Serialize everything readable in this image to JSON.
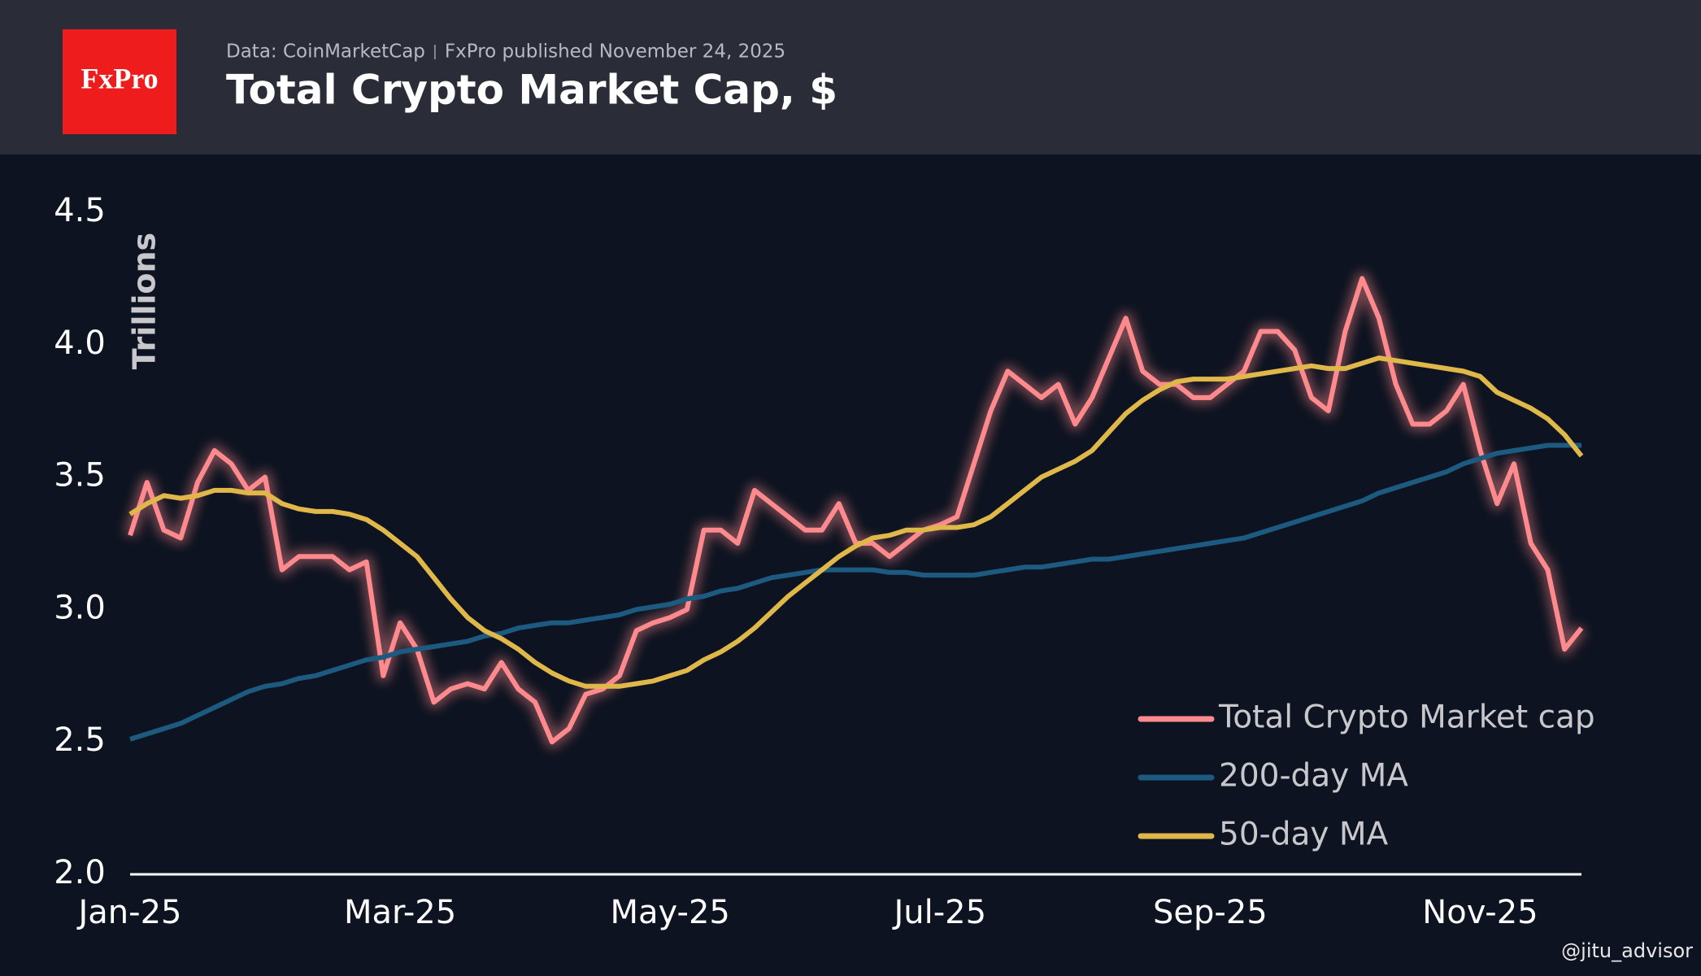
{
  "header": {
    "logo": "FxPro",
    "source": "Data: CoinMarketCap",
    "published": "FxPro published November 24, 2025"
  },
  "watermark": "@jitu_advisor",
  "chart_data": {
    "type": "line",
    "title": "Total Crypto Market Cap, $",
    "y_label": "Trillions",
    "categories": [
      "Jan-25",
      null,
      null,
      null,
      null,
      null,
      null,
      null,
      null,
      null,
      null,
      null,
      null,
      null,
      null,
      null,
      "Mar-25",
      null,
      null,
      null,
      null,
      null,
      null,
      null,
      null,
      null,
      null,
      null,
      null,
      null,
      null,
      null,
      "May-25",
      null,
      null,
      null,
      null,
      null,
      null,
      null,
      null,
      null,
      null,
      null,
      null,
      null,
      null,
      null,
      "Jul-25",
      null,
      null,
      null,
      null,
      null,
      null,
      null,
      null,
      null,
      null,
      null,
      null,
      null,
      null,
      null,
      "Sep-25",
      null,
      null,
      null,
      null,
      null,
      null,
      null,
      null,
      null,
      null,
      null,
      null,
      null,
      null,
      null,
      "Nov-25",
      null,
      null,
      null,
      null,
      null,
      null
    ],
    "series": [
      {
        "name": "Total Crypto Market cap",
        "color": "#ff8a8e",
        "glow": true,
        "values": [
          3.28,
          3.48,
          3.3,
          3.27,
          3.48,
          3.6,
          3.55,
          3.45,
          3.5,
          3.15,
          3.2,
          3.2,
          3.2,
          3.15,
          3.18,
          2.75,
          2.95,
          2.85,
          2.65,
          2.7,
          2.72,
          2.7,
          2.8,
          2.7,
          2.65,
          2.5,
          2.55,
          2.68,
          2.7,
          2.75,
          2.92,
          2.95,
          2.97,
          3.0,
          3.3,
          3.3,
          3.25,
          3.45,
          3.4,
          3.35,
          3.3,
          3.3,
          3.4,
          3.25,
          3.25,
          3.2,
          3.25,
          3.3,
          3.32,
          3.35,
          3.55,
          3.75,
          3.9,
          3.85,
          3.8,
          3.85,
          3.7,
          3.8,
          3.95,
          4.1,
          3.9,
          3.85,
          3.85,
          3.8,
          3.8,
          3.85,
          3.9,
          4.05,
          4.05,
          3.98,
          3.8,
          3.75,
          4.05,
          4.25,
          4.1,
          3.85,
          3.7,
          3.7,
          3.75,
          3.85,
          3.6,
          3.4,
          3.55,
          3.25,
          3.15,
          2.85,
          2.93
        ]
      },
      {
        "name": "200-day MA",
        "color": "#1d5a80",
        "values": [
          2.51,
          2.53,
          2.55,
          2.57,
          2.6,
          2.63,
          2.66,
          2.69,
          2.71,
          2.72,
          2.74,
          2.75,
          2.77,
          2.79,
          2.81,
          2.82,
          2.84,
          2.85,
          2.86,
          2.87,
          2.88,
          2.9,
          2.91,
          2.93,
          2.94,
          2.95,
          2.95,
          2.96,
          2.97,
          2.98,
          3.0,
          3.01,
          3.02,
          3.04,
          3.05,
          3.07,
          3.08,
          3.1,
          3.12,
          3.13,
          3.14,
          3.15,
          3.15,
          3.15,
          3.15,
          3.14,
          3.14,
          3.13,
          3.13,
          3.13,
          3.13,
          3.14,
          3.15,
          3.16,
          3.16,
          3.17,
          3.18,
          3.19,
          3.19,
          3.2,
          3.21,
          3.22,
          3.23,
          3.24,
          3.25,
          3.26,
          3.27,
          3.29,
          3.31,
          3.33,
          3.35,
          3.37,
          3.39,
          3.41,
          3.44,
          3.46,
          3.48,
          3.5,
          3.52,
          3.55,
          3.57,
          3.59,
          3.6,
          3.61,
          3.62,
          3.62,
          3.62
        ]
      },
      {
        "name": "50-day MA",
        "color": "#e0b84a",
        "values": [
          3.36,
          3.4,
          3.43,
          3.42,
          3.43,
          3.45,
          3.45,
          3.44,
          3.44,
          3.4,
          3.38,
          3.37,
          3.37,
          3.36,
          3.34,
          3.3,
          3.25,
          3.2,
          3.12,
          3.04,
          2.97,
          2.92,
          2.89,
          2.85,
          2.8,
          2.76,
          2.73,
          2.71,
          2.71,
          2.71,
          2.72,
          2.73,
          2.75,
          2.77,
          2.81,
          2.84,
          2.88,
          2.93,
          2.99,
          3.05,
          3.1,
          3.15,
          3.2,
          3.24,
          3.27,
          3.28,
          3.3,
          3.3,
          3.31,
          3.31,
          3.32,
          3.35,
          3.4,
          3.45,
          3.5,
          3.53,
          3.56,
          3.6,
          3.67,
          3.74,
          3.79,
          3.83,
          3.86,
          3.87,
          3.87,
          3.87,
          3.88,
          3.89,
          3.9,
          3.91,
          3.92,
          3.91,
          3.91,
          3.93,
          3.95,
          3.94,
          3.93,
          3.92,
          3.91,
          3.9,
          3.88,
          3.82,
          3.79,
          3.76,
          3.72,
          3.66,
          3.58
        ]
      }
    ],
    "ylim": [
      2,
      4.5
    ],
    "yticks": [
      {
        "value": 2,
        "label": "2.0"
      },
      2.5,
      {
        "value": 3,
        "label": "3.0"
      },
      3.5,
      {
        "value": 4,
        "label": "4.0"
      },
      4.5
    ],
    "grid": false,
    "legend": "lower right"
  }
}
